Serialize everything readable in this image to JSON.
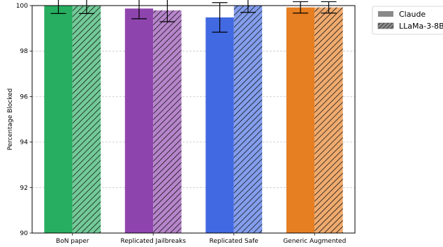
{
  "chart_data": {
    "type": "bar",
    "title": "",
    "xlabel": "",
    "ylabel": "Percentage Blocked",
    "ylim": [
      90,
      100
    ],
    "yticks": [
      90,
      92,
      94,
      96,
      98,
      100
    ],
    "grid": "horizontal dashed",
    "legend_placement": "outside top-right",
    "categories": [
      "BoN paper",
      "Replicated Jailbreaks",
      "Replicated Safe",
      "Generic Augmented"
    ],
    "category_colors": [
      "#27ae60",
      "#8e44ad",
      "#4169e1",
      "#e67e22"
    ],
    "series": [
      {
        "name": "Claude",
        "hatch": "solid",
        "values": [
          100.0,
          99.87,
          99.48,
          99.92
        ],
        "err": [
          0.35,
          0.45,
          0.65,
          0.25
        ]
      },
      {
        "name": "LLaMa-3-8B",
        "hatch": "diagonal",
        "values": [
          100.0,
          99.79,
          100.0,
          99.92
        ],
        "err": [
          0.35,
          0.5,
          0.3,
          0.25
        ]
      }
    ]
  }
}
